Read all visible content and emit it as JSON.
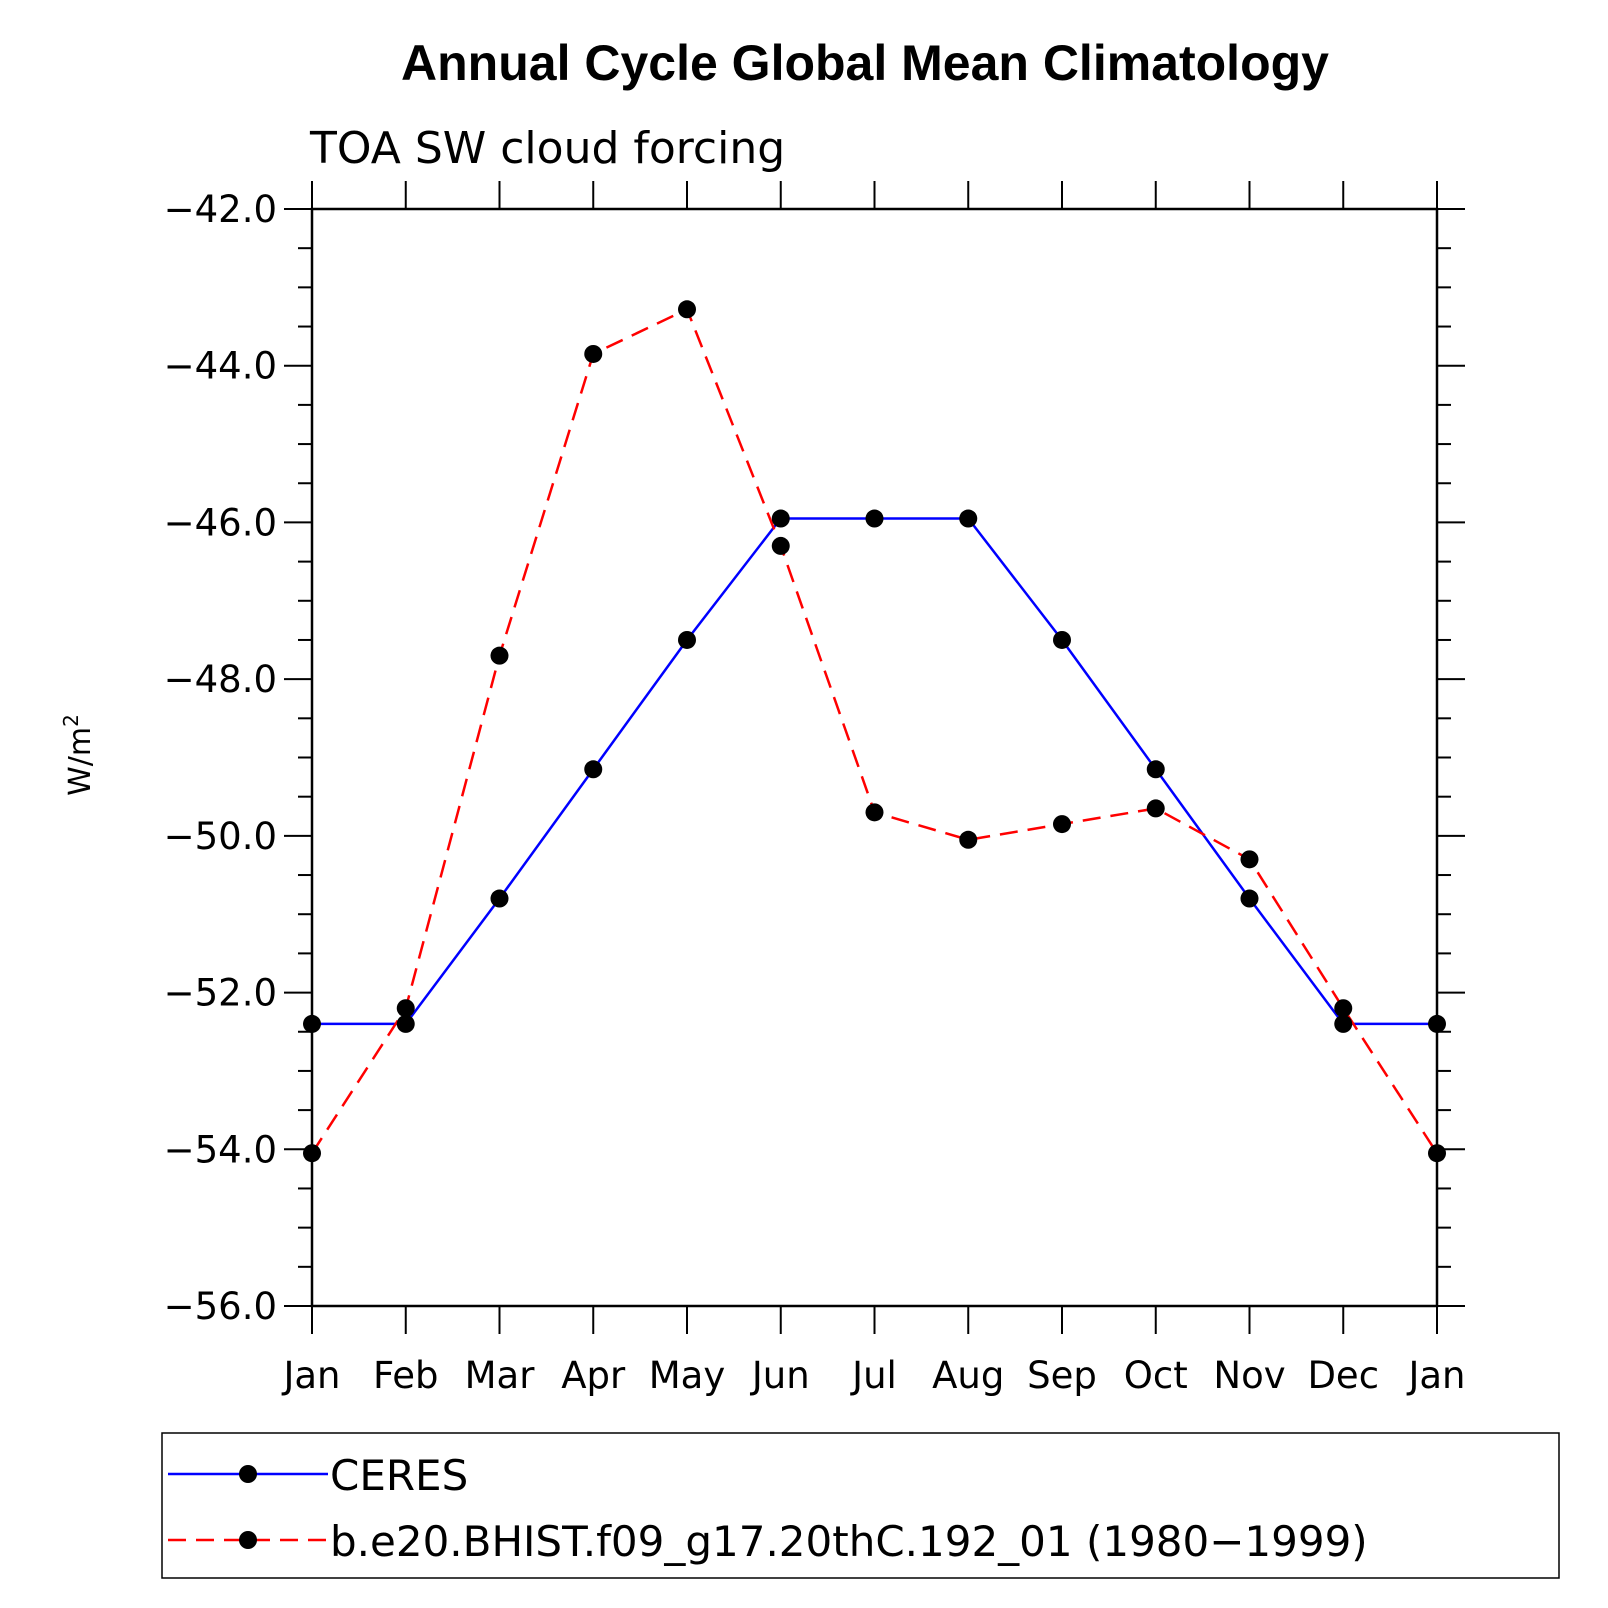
{
  "chart_data": {
    "type": "line",
    "title": "Annual Cycle Global Mean Climatology",
    "subtitle": "TOA SW cloud forcing",
    "ylabel": "W/m",
    "ylabel_superscript": "2",
    "xlabel": "",
    "categories": [
      "Jan",
      "Feb",
      "Mar",
      "Apr",
      "May",
      "Jun",
      "Jul",
      "Aug",
      "Sep",
      "Oct",
      "Nov",
      "Dec",
      "Jan"
    ],
    "ylim": [
      -56.0,
      -42.0
    ],
    "yticks": [
      "−56.0",
      "−54.0",
      "−52.0",
      "−50.0",
      "−48.0",
      "−46.0",
      "−44.0",
      "−42.0"
    ],
    "ytick_values": [
      -56,
      -54,
      -52,
      -50,
      -48,
      -46,
      -44,
      -42
    ],
    "grid": false,
    "legend_position": "bottom",
    "series": [
      {
        "name": "CERES",
        "color": "#0000ff",
        "dash": "solid",
        "marker": "filled-circle",
        "values": [
          -52.4,
          -52.4,
          -50.8,
          -49.15,
          -47.5,
          -45.95,
          -45.95,
          -45.95,
          -47.5,
          -49.15,
          -50.8,
          -52.4,
          -52.4
        ]
      },
      {
        "name": "b.e20.BHIST.f09_g17.20thC.192_01 (1980−1999)",
        "color": "#ff0000",
        "dash": "dashed",
        "marker": "filled-circle",
        "values": [
          -54.05,
          -52.2,
          -47.7,
          -43.85,
          -43.28,
          -46.3,
          -49.7,
          -50.05,
          -49.85,
          -49.65,
          -50.3,
          -52.2,
          -54.05
        ]
      }
    ]
  }
}
